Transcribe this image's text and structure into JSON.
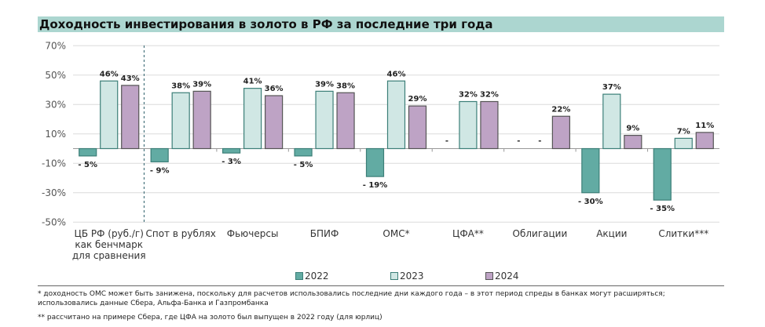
{
  "title": "Доходность инвестирования в золото в РФ за последние три года",
  "chart_data": {
    "type": "bar",
    "ylim": [
      -50,
      70
    ],
    "yticks": [
      70,
      50,
      30,
      10,
      -10,
      -30,
      -50
    ],
    "ytick_labels": [
      "70%",
      "50%",
      "30%",
      "10%",
      "-10%",
      "-30%",
      "-50%"
    ],
    "grid": true,
    "legend_position": "bottom",
    "categories": [
      "ЦБ РФ (руб./г)\nкак бенчмарк\nдля сравнения",
      "Спот в рублях",
      "Фьючерсы",
      "БПИФ",
      "ОМС*",
      "ЦФА**",
      "Облигации",
      "Акции",
      "Слитки***"
    ],
    "series": [
      {
        "name": "2022",
        "color": "#62aba3",
        "values": [
          -5,
          -9,
          -3,
          -5,
          -19,
          null,
          null,
          -30,
          -35
        ],
        "labels": [
          "- 5%",
          "- 9%",
          "- 3%",
          "- 5%",
          "- 19%",
          "-",
          "-",
          "- 30%",
          "- 35%"
        ]
      },
      {
        "name": "2023",
        "color": "#d0e7e4",
        "values": [
          46,
          38,
          41,
          39,
          46,
          32,
          null,
          37,
          7
        ],
        "labels": [
          "46%",
          "38%",
          "41%",
          "39%",
          "46%",
          "32%",
          "-",
          "37%",
          "7%"
        ]
      },
      {
        "name": "2024",
        "color": "#bea3c5",
        "values": [
          43,
          39,
          36,
          38,
          29,
          32,
          22,
          9,
          11
        ],
        "labels": [
          "43%",
          "39%",
          "36%",
          "38%",
          "29%",
          "32%",
          "22%",
          "9%",
          "11%"
        ]
      }
    ]
  },
  "footnotes": [
    "* доходность ОМС может быть занижена, поскольку для расчетов использовались последние дни каждого года – в этот период спреды в банках могут расширяться; использовались данные Сбера, Альфа-Банка и Газпромбанка",
    "** рассчитано на примере Сбера, где ЦФА на золото был выпущен в 2022 году (для юрлиц)"
  ]
}
